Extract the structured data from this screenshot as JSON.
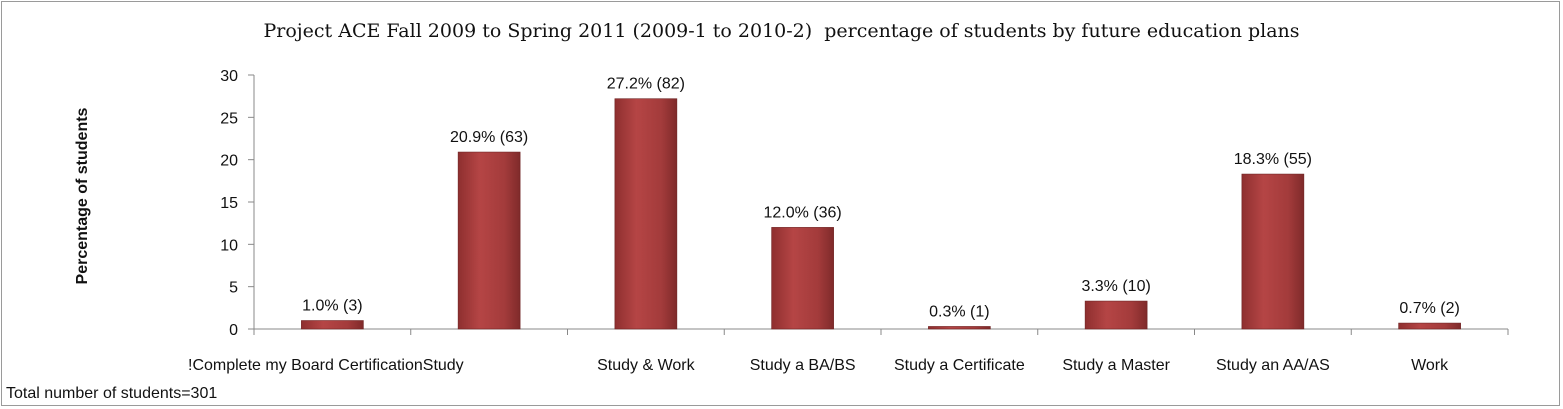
{
  "chart_data": {
    "type": "bar",
    "title": "Project ACE Fall 2009 to Spring 2011 (2009-1 to 2010-2)  percentage of students by future education plans",
    "xlabel": "",
    "ylabel": "Percentage of students",
    "ylim": [
      0,
      30
    ],
    "yticks": [
      0,
      5,
      10,
      15,
      20,
      25,
      30
    ],
    "grid": false,
    "legend": "none",
    "bar_color": "#a33b3b",
    "categories": [
      "!Complete my Board Certification",
      "Study",
      "Study & Work",
      "Study a BA/BS",
      "Study a Certificate",
      "Study a Master",
      "Study an AA/AS",
      "Work"
    ],
    "values": [
      1.0,
      20.9,
      27.2,
      12.0,
      0.3,
      3.3,
      18.3,
      0.7
    ],
    "data_labels": [
      "1.0% (3)",
      "20.9% (63)",
      "27.2% (82)",
      "12.0% (36)",
      "0.3% (1)",
      "3.3% (10)",
      "18.3% (55)",
      "0.7% (2)"
    ],
    "footnote": "Total number of students=301"
  }
}
